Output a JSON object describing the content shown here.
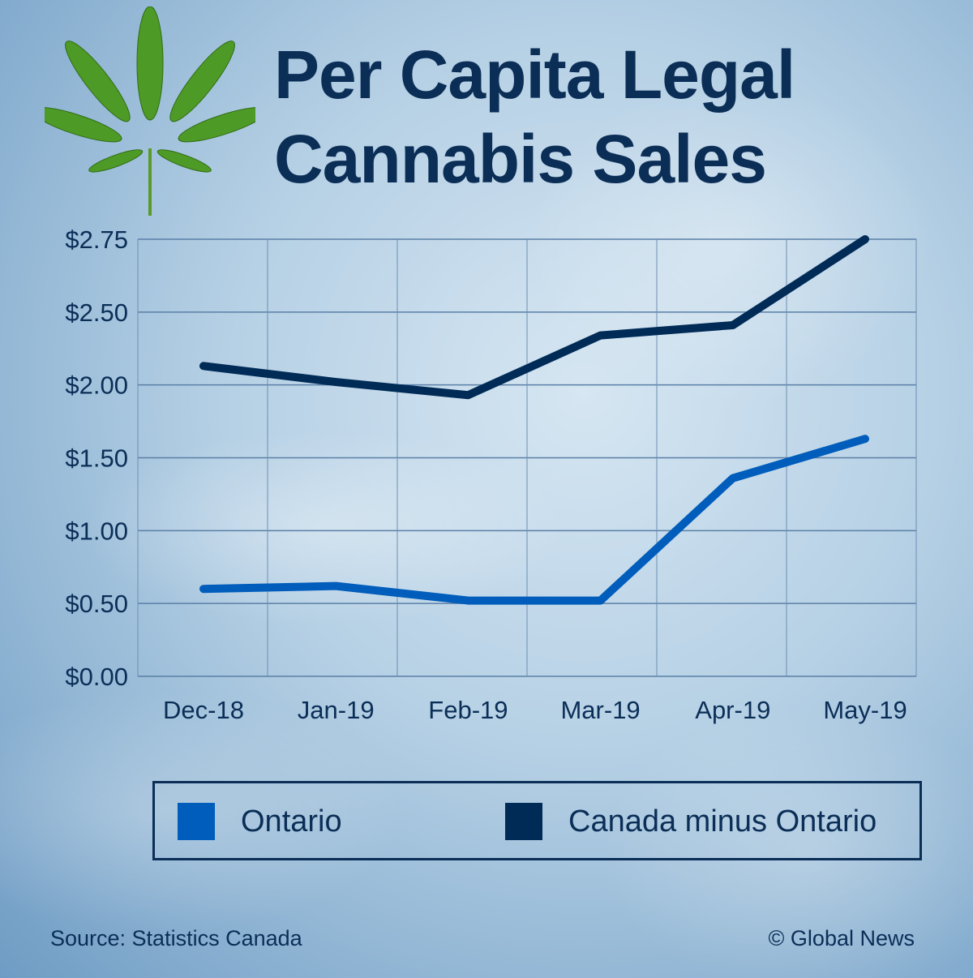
{
  "title_line1": "Per Capita Legal",
  "title_line2": "Cannabis Sales",
  "icon": "cannabis-leaf-icon",
  "source": "Source: Statistics Canada",
  "credit": "© Global News",
  "colors": {
    "ontario": "#005dbb",
    "canada_minus_ontario": "#002b57",
    "text": "#0b2e57"
  },
  "chart_data": {
    "type": "line",
    "title": "Per Capita Legal Cannabis Sales",
    "categories": [
      "Dec-18",
      "Jan-19",
      "Feb-19",
      "Mar-19",
      "Apr-19",
      "May-19"
    ],
    "y_ticks": [
      "$0.00",
      "$0.50",
      "$1.00",
      "$1.50",
      "$2.00",
      "$2.50",
      "$2.75"
    ],
    "y_tick_values": [
      0,
      0.5,
      1,
      1.5,
      2,
      2.5,
      2.75
    ],
    "ylim": [
      0,
      2.75
    ],
    "grid": true,
    "legend_placement": "bottom",
    "series": [
      {
        "name": "Ontario",
        "color": "#005dbb",
        "values": [
          0.6,
          0.62,
          0.52,
          0.52,
          1.36,
          1.63
        ]
      },
      {
        "name": "Canada minus Ontario",
        "color": "#002b57",
        "values": [
          2.13,
          2.02,
          1.93,
          2.34,
          2.41,
          2.75
        ]
      }
    ]
  }
}
